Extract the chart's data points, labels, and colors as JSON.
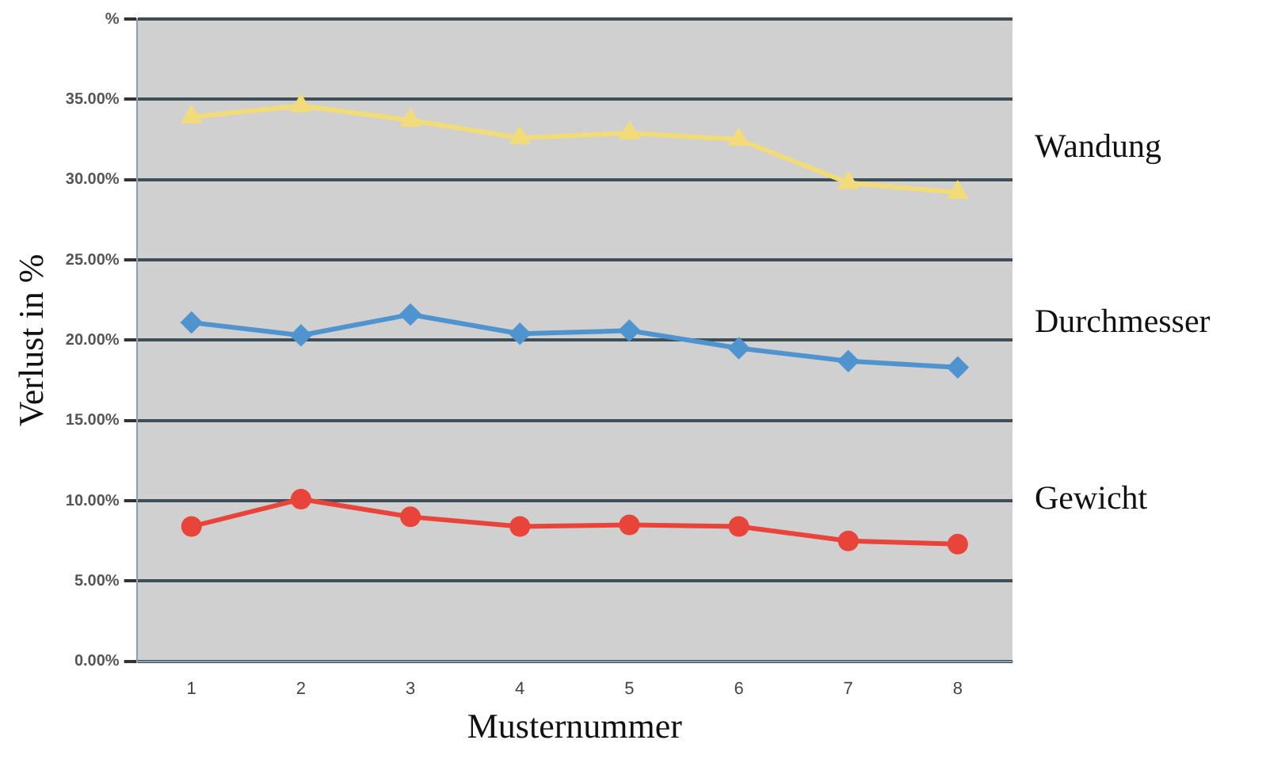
{
  "chart_data": {
    "type": "line",
    "xlabel": "Musternummer",
    "ylabel": "Verlust in %",
    "categories": [
      "1",
      "2",
      "3",
      "4",
      "5",
      "6",
      "7",
      "8"
    ],
    "series": [
      {
        "name": "Wandung",
        "color": "#f2dc7a",
        "marker": "triangle",
        "values": [
          33.9,
          34.6,
          33.7,
          32.6,
          32.9,
          32.5,
          29.8,
          29.2
        ]
      },
      {
        "name": "Durchmesser",
        "color": "#4f93cf",
        "marker": "diamond",
        "values": [
          21.1,
          20.3,
          21.6,
          20.4,
          20.6,
          19.5,
          18.7,
          18.3
        ]
      },
      {
        "name": "Gewicht",
        "color": "#e8443a",
        "marker": "circle",
        "values": [
          8.4,
          10.1,
          9.0,
          8.4,
          8.5,
          8.4,
          7.5,
          7.3
        ]
      }
    ],
    "ylim": [
      0,
      40
    ],
    "yticks": [
      {
        "value": 0,
        "label": "0.00%"
      },
      {
        "value": 5,
        "label": "5.00%"
      },
      {
        "value": 10,
        "label": "10.00%"
      },
      {
        "value": 15,
        "label": "15.00%"
      },
      {
        "value": 20,
        "label": "20.00%"
      },
      {
        "value": 25,
        "label": "25.00%"
      },
      {
        "value": 30,
        "label": "30.00%"
      },
      {
        "value": 35,
        "label": "35.00%"
      },
      {
        "value": 40,
        "label": "%"
      }
    ],
    "grid": "y",
    "legend": false,
    "line_style": "solid"
  }
}
